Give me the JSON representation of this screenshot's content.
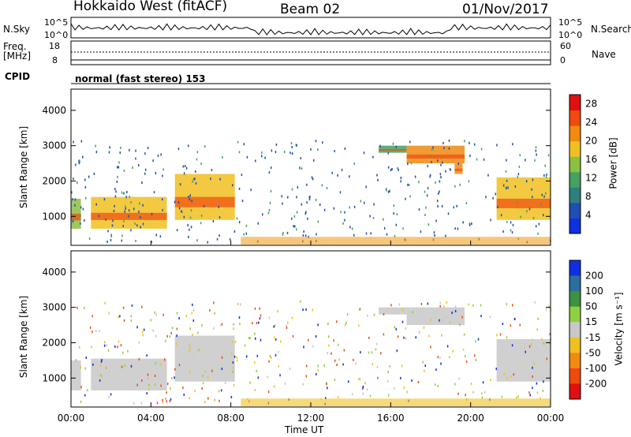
{
  "header": {
    "station": "Hokkaido West (fitACF)",
    "beam": "Beam 02",
    "date": "01/Nov/2017"
  },
  "strip_panels": {
    "nsky_label": "N.Sky",
    "nsearch_label": "N.Search",
    "nsky_ticks": [
      "10^5",
      "10^0"
    ],
    "nsearch_ticks": [
      "10^5",
      "10^0"
    ],
    "freq_label_1": "Freq.",
    "freq_label_2": "[MHz]",
    "freq_ticks": [
      "18",
      "8"
    ],
    "nave_label": "Nave",
    "nave_ticks": [
      "60",
      "0"
    ],
    "cpid_label": "CPID",
    "cpid_text": "normal (fast stereo) 153"
  },
  "chart_data": [
    {
      "type": "heatmap",
      "name": "power",
      "ylabel": "Slant Range [km]",
      "ylim": [
        180,
        4600
      ],
      "yticks": [
        1000,
        2000,
        3000,
        4000
      ],
      "xlim": [
        0,
        24
      ],
      "xticks": [
        "00:00",
        "04:00",
        "08:00",
        "12:00",
        "16:00",
        "20:00",
        "00:00"
      ],
      "colorbar": {
        "label": "Power [dB]",
        "ticks": [
          4,
          8,
          12,
          16,
          20,
          24,
          28
        ],
        "range": [
          0,
          30
        ],
        "colors": [
          "#1030e0",
          "#1f4fb0",
          "#2f7f7f",
          "#46a060",
          "#8cc040",
          "#f0c020",
          "#f08a10",
          "#f04a10",
          "#e01010"
        ]
      },
      "regions": [
        {
          "t": [
            0.0,
            0.5
          ],
          "r": [
            650,
            1500
          ],
          "level": 16
        },
        {
          "t": [
            1.0,
            4.8
          ],
          "r": [
            650,
            1550
          ],
          "level": 18
        },
        {
          "t": [
            5.2,
            8.2
          ],
          "r": [
            900,
            2200
          ],
          "level": 18
        },
        {
          "t": [
            15.4,
            16.8
          ],
          "r": [
            2800,
            3000
          ],
          "level": 12
        },
        {
          "t": [
            16.8,
            19.7
          ],
          "r": [
            2500,
            3000
          ],
          "level": 20
        },
        {
          "t": [
            19.2,
            19.6
          ],
          "r": [
            2200,
            2500
          ],
          "level": 22
        },
        {
          "t": [
            21.3,
            24.0
          ],
          "r": [
            900,
            2100
          ],
          "level": 18
        }
      ]
    },
    {
      "type": "heatmap",
      "name": "velocity",
      "ylabel": "Slant Range [km]",
      "ylim": [
        180,
        4600
      ],
      "yticks": [
        1000,
        2000,
        3000,
        4000
      ],
      "xlim": [
        0,
        24
      ],
      "xticks": [
        "00:00",
        "04:00",
        "08:00",
        "12:00",
        "16:00",
        "20:00",
        "00:00"
      ],
      "xlabel": "Time UT",
      "colorbar": {
        "label": "Velocity [m s⁻¹]",
        "ticks": [
          200,
          100,
          50,
          15,
          -15,
          -50,
          -100,
          -200
        ],
        "colors": [
          "#1030e0",
          "#2a6fa0",
          "#3f9040",
          "#8ed040",
          "#c8c8c8",
          "#f0c020",
          "#f08a10",
          "#f04a10",
          "#e01010"
        ]
      },
      "regions": [
        {
          "t": [
            0.0,
            0.5
          ],
          "r": [
            650,
            1500
          ],
          "level": 0
        },
        {
          "t": [
            1.0,
            4.8
          ],
          "r": [
            650,
            1550
          ],
          "level": 0
        },
        {
          "t": [
            5.2,
            8.2
          ],
          "r": [
            900,
            2200
          ],
          "level": 0
        },
        {
          "t": [
            15.4,
            16.8
          ],
          "r": [
            2800,
            3000
          ],
          "level": 0
        },
        {
          "t": [
            16.8,
            19.7
          ],
          "r": [
            2500,
            3000
          ],
          "level": 0
        },
        {
          "t": [
            21.3,
            24.0
          ],
          "r": [
            900,
            2100
          ],
          "level": 0
        }
      ]
    }
  ]
}
